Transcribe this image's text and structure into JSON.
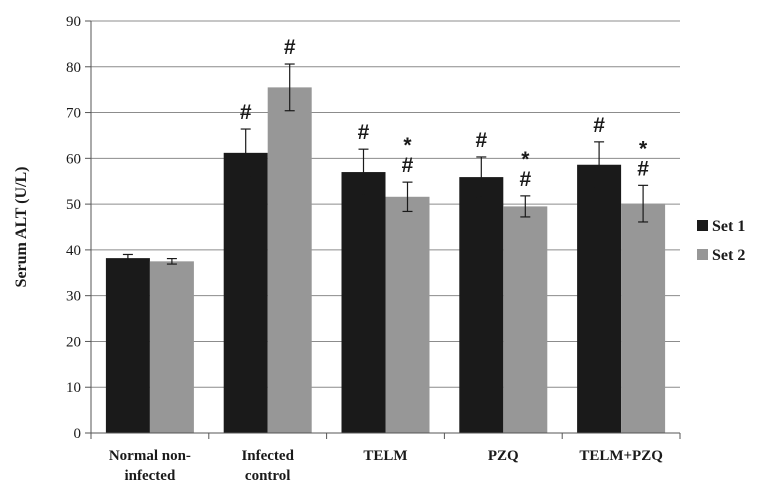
{
  "chart_data": {
    "type": "bar",
    "title": "",
    "xlabel": "",
    "ylabel": "Serum ALT (U/L)",
    "ylim": [
      0,
      90
    ],
    "yticks": [
      0,
      10,
      20,
      30,
      40,
      50,
      60,
      70,
      80,
      90
    ],
    "grid": true,
    "legend_position": "right",
    "categories": [
      [
        "Normal non-",
        "infected"
      ],
      [
        "Infected",
        "control"
      ],
      [
        "TELM"
      ],
      [
        "PZQ"
      ],
      [
        "TELM+PZQ"
      ]
    ],
    "series": [
      {
        "name": "Set 1",
        "color": "#1a1a1a",
        "values": [
          38.2,
          61.2,
          57.0,
          55.9,
          58.6
        ],
        "errors": [
          0.8,
          5.2,
          5.0,
          4.4,
          5.0
        ],
        "annotations": [
          [],
          [
            "#"
          ],
          [
            "#"
          ],
          [
            "#"
          ],
          [
            "#"
          ]
        ]
      },
      {
        "name": "Set 2",
        "color": "#979797",
        "values": [
          37.5,
          75.5,
          51.6,
          49.5,
          50.1
        ],
        "errors": [
          0.6,
          5.1,
          3.2,
          2.3,
          4.0
        ],
        "annotations": [
          [],
          [
            "#"
          ],
          [
            "#",
            "*"
          ],
          [
            "#",
            "*"
          ],
          [
            "#",
            "*"
          ]
        ]
      }
    ]
  }
}
